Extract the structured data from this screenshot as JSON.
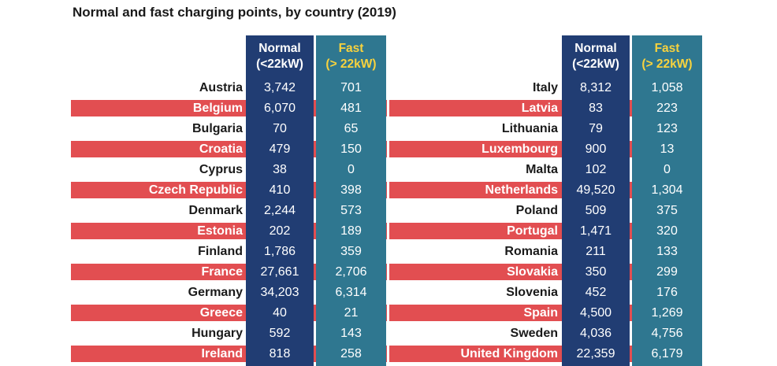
{
  "title": "Normal and fast charging points, by country (2019)",
  "headers": {
    "normal_line1": "Normal",
    "normal_line2": "(<22kW)",
    "fast_line1": "Fast",
    "fast_line2": "(> 22kW)"
  },
  "colors": {
    "normal_column": "#213d73",
    "fast_column": "#2f7790",
    "row_stripe": "#e24e51",
    "fast_header_text": "#f7d23e"
  },
  "chart_data": {
    "type": "table",
    "title": "Normal and fast charging points, by country (2019)",
    "columns": [
      "Normal (<22kW)",
      "Fast (> 22kW)"
    ],
    "tables": [
      {
        "rows": [
          {
            "country": "Austria",
            "normal": "3,742",
            "fast": "701"
          },
          {
            "country": "Belgium",
            "normal": "6,070",
            "fast": "481"
          },
          {
            "country": "Bulgaria",
            "normal": "70",
            "fast": "65"
          },
          {
            "country": "Croatia",
            "normal": "479",
            "fast": "150"
          },
          {
            "country": "Cyprus",
            "normal": "38",
            "fast": "0"
          },
          {
            "country": "Czech Republic",
            "normal": "410",
            "fast": "398"
          },
          {
            "country": "Denmark",
            "normal": "2,244",
            "fast": "573"
          },
          {
            "country": "Estonia",
            "normal": "202",
            "fast": "189"
          },
          {
            "country": "Finland",
            "normal": "1,786",
            "fast": "359"
          },
          {
            "country": "France",
            "normal": "27,661",
            "fast": "2,706"
          },
          {
            "country": "Germany",
            "normal": "34,203",
            "fast": "6,314"
          },
          {
            "country": "Greece",
            "normal": "40",
            "fast": "21"
          },
          {
            "country": "Hungary",
            "normal": "592",
            "fast": "143"
          },
          {
            "country": "Ireland",
            "normal": "818",
            "fast": "258"
          }
        ]
      },
      {
        "rows": [
          {
            "country": "Italy",
            "normal": "8,312",
            "fast": "1,058"
          },
          {
            "country": "Latvia",
            "normal": "83",
            "fast": "223"
          },
          {
            "country": "Lithuania",
            "normal": "79",
            "fast": "123"
          },
          {
            "country": "Luxembourg",
            "normal": "900",
            "fast": "13"
          },
          {
            "country": "Malta",
            "normal": "102",
            "fast": "0"
          },
          {
            "country": "Netherlands",
            "normal": "49,520",
            "fast": "1,304"
          },
          {
            "country": "Poland",
            "normal": "509",
            "fast": "375"
          },
          {
            "country": "Portugal",
            "normal": "1,471",
            "fast": "320"
          },
          {
            "country": "Romania",
            "normal": "211",
            "fast": "133"
          },
          {
            "country": "Slovakia",
            "normal": "350",
            "fast": "299"
          },
          {
            "country": "Slovenia",
            "normal": "452",
            "fast": "176"
          },
          {
            "country": "Spain",
            "normal": "4,500",
            "fast": "1,269"
          },
          {
            "country": "Sweden",
            "normal": "4,036",
            "fast": "4,756"
          },
          {
            "country": "United Kingdom",
            "normal": "22,359",
            "fast": "6,179"
          }
        ]
      }
    ]
  }
}
